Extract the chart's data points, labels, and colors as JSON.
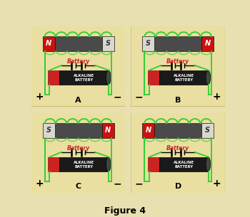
{
  "figure_title": "Figure 4",
  "outer_bg": "#e8e0b0",
  "panel_bg": "#e8dfa0",
  "panel_edge": "#c8b060",
  "panels": [
    {
      "magnet_order": [
        "N",
        "S"
      ],
      "plus_left": true,
      "label": "A"
    },
    {
      "magnet_order": [
        "S",
        "N"
      ],
      "plus_left": false,
      "label": "B"
    },
    {
      "magnet_order": [
        "S",
        "N"
      ],
      "plus_left": true,
      "label": "C"
    },
    {
      "magnet_order": [
        "N",
        "S"
      ],
      "plus_left": false,
      "label": "D"
    }
  ],
  "N_color": "#cc1111",
  "S_color": "#d8d8d0",
  "magnet_body_color": "#4a4a4a",
  "battery_red": "#cc2222",
  "battery_dark": "#1a1a1a",
  "battery_mid": "#444444",
  "wire_color": "#33cc33",
  "battery_label_color": "#cc2222",
  "plus_minus_size": 10,
  "label_size": 8,
  "title_size": 9
}
